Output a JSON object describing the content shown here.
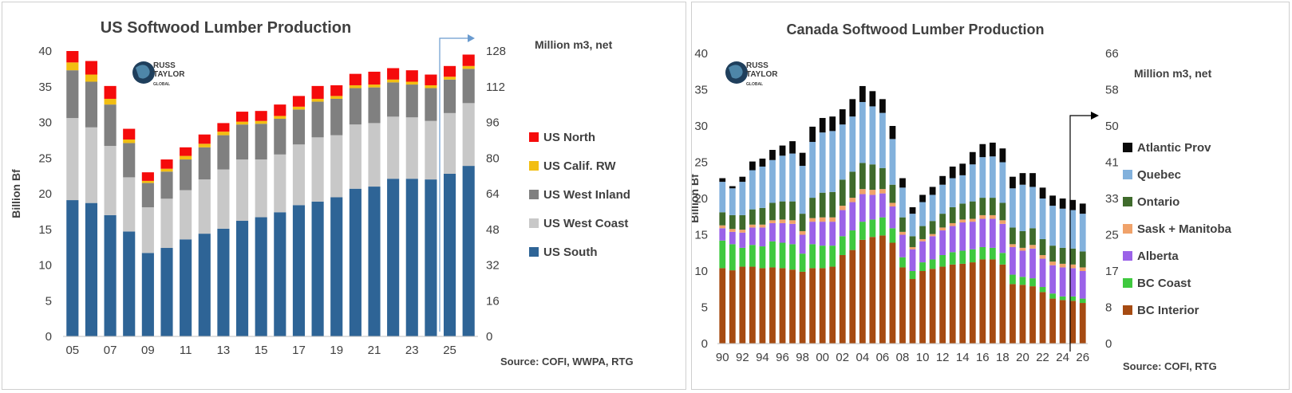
{
  "chart_data": [
    {
      "type": "bar",
      "stacked": true,
      "title": "US Softwood Lumber Production",
      "ylabel": "Billion Bf",
      "y2label": "Million m3, net",
      "source": "Source: COFI, WWPA, RTG",
      "ylim": [
        0,
        40
      ],
      "yticks": [
        "0",
        "5",
        "10",
        "15",
        "20",
        "25",
        "30",
        "35",
        "40"
      ],
      "y2ticks": [
        "0",
        "16",
        "32",
        "48",
        "64",
        "80",
        "96",
        "112",
        "128"
      ],
      "xticks": [
        "05",
        "07",
        "09",
        "11",
        "13",
        "15",
        "17",
        "19",
        "21",
        "23",
        "25"
      ],
      "categories": [
        "2005",
        "2006",
        "2007",
        "2008",
        "2009",
        "2010",
        "2011",
        "2012",
        "2013",
        "2014",
        "2015",
        "2016",
        "2017",
        "2018",
        "2019",
        "2020",
        "2021",
        "2022",
        "2023",
        "2024",
        "2025",
        "2026"
      ],
      "grid": false,
      "legend_position": "right",
      "legend_order": [
        4,
        3,
        2,
        1,
        0
      ],
      "series": [
        {
          "name": "US South",
          "color": "#2e6496",
          "values": [
            19.1,
            18.7,
            17.0,
            14.7,
            11.7,
            12.4,
            13.6,
            14.4,
            15.1,
            16.2,
            16.7,
            17.4,
            18.4,
            18.9,
            19.5,
            20.7,
            21.0,
            22.1,
            22.1,
            22.0,
            22.8,
            23.9
          ]
        },
        {
          "name": "US West Coast",
          "color": "#c8c8c8",
          "values": [
            11.5,
            10.6,
            9.7,
            7.6,
            6.4,
            6.9,
            6.9,
            7.6,
            8.3,
            8.6,
            8.1,
            8.1,
            8.5,
            9.0,
            8.7,
            9.0,
            8.9,
            8.7,
            8.6,
            8.2,
            8.5,
            8.8
          ]
        },
        {
          "name": "US West Inland",
          "color": "#808080",
          "values": [
            6.7,
            6.4,
            5.8,
            4.8,
            3.4,
            3.8,
            4.3,
            4.5,
            4.8,
            4.9,
            5.0,
            5.0,
            4.9,
            5.0,
            5.1,
            5.1,
            5.0,
            4.8,
            4.6,
            4.6,
            4.7,
            4.8
          ]
        },
        {
          "name": "US Calif. RW",
          "color": "#f2be12",
          "values": [
            1.1,
            1.0,
            0.8,
            0.5,
            0.3,
            0.4,
            0.5,
            0.5,
            0.5,
            0.4,
            0.4,
            0.4,
            0.4,
            0.4,
            0.4,
            0.4,
            0.4,
            0.4,
            0.4,
            0.4,
            0.4,
            0.4
          ]
        },
        {
          "name": "US North",
          "color": "#f50b0b",
          "values": [
            1.6,
            1.9,
            1.8,
            1.5,
            1.2,
            1.3,
            1.2,
            1.3,
            1.2,
            1.4,
            1.4,
            1.6,
            1.5,
            1.8,
            1.5,
            1.6,
            1.8,
            1.6,
            1.6,
            1.5,
            1.5,
            1.6
          ]
        }
      ]
    },
    {
      "type": "bar",
      "stacked": true,
      "title": "Canada Softwood Lumber Production",
      "ylabel": "Billion Bf",
      "y2label": "Million m3, net",
      "source": "Source: COFI, RTG",
      "ylim": [
        0,
        40
      ],
      "yticks": [
        "0",
        "5",
        "10",
        "15",
        "20",
        "25",
        "30",
        "35",
        "40"
      ],
      "y2ticks": [
        "0",
        "8",
        "17",
        "25",
        "33",
        "41",
        "50",
        "58",
        "66"
      ],
      "xticks": [
        "90",
        "92",
        "94",
        "96",
        "98",
        "00",
        "02",
        "04",
        "06",
        "08",
        "10",
        "12",
        "14",
        "16",
        "18",
        "20",
        "22",
        "24",
        "26"
      ],
      "categories": [
        "1990",
        "1991",
        "1992",
        "1993",
        "1994",
        "1995",
        "1996",
        "1997",
        "1998",
        "1999",
        "2000",
        "2001",
        "2002",
        "2003",
        "2004",
        "2005",
        "2006",
        "2007",
        "2008",
        "2009",
        "2010",
        "2011",
        "2012",
        "2013",
        "2014",
        "2015",
        "2016",
        "2017",
        "2018",
        "2019",
        "2020",
        "2021",
        "2022",
        "2023",
        "2024",
        "2025",
        "2026"
      ],
      "grid": false,
      "legend_position": "right",
      "legend_order": [
        6,
        5,
        4,
        3,
        2,
        1,
        0
      ],
      "series": [
        {
          "name": "BC Interior",
          "color": "#a64b12",
          "values": [
            10.4,
            10.1,
            10.6,
            10.6,
            10.4,
            10.5,
            10.4,
            10.2,
            9.9,
            10.4,
            10.4,
            10.6,
            12.2,
            12.9,
            14.3,
            14.7,
            14.9,
            13.9,
            10.5,
            8.9,
            10.0,
            10.3,
            10.6,
            10.9,
            11.0,
            11.2,
            11.6,
            11.6,
            10.9,
            8.2,
            8.1,
            7.9,
            7.1,
            6.2,
            6.0,
            5.9,
            5.6
          ]
        },
        {
          "name": "BC Coast",
          "color": "#3fc93f",
          "values": [
            3.8,
            3.6,
            2.6,
            3.0,
            3.0,
            3.6,
            3.5,
            3.5,
            2.5,
            3.3,
            3.1,
            2.9,
            2.6,
            2.7,
            2.5,
            2.4,
            2.5,
            2.0,
            1.4,
            1.1,
            1.2,
            1.3,
            1.6,
            1.7,
            1.8,
            1.8,
            1.7,
            1.6,
            1.6,
            1.3,
            1.1,
            1.1,
            0.7,
            0.7,
            0.5,
            0.6,
            0.6
          ]
        },
        {
          "name": "Alberta",
          "color": "#9b62e8",
          "values": [
            1.7,
            1.7,
            2.1,
            2.4,
            2.6,
            2.5,
            2.7,
            2.8,
            2.6,
            3.1,
            3.3,
            3.3,
            3.6,
            3.9,
            3.8,
            3.4,
            3.3,
            3.0,
            3.1,
            3.0,
            2.9,
            3.2,
            3.4,
            3.6,
            3.9,
            3.8,
            3.9,
            4.0,
            4.0,
            3.8,
            3.6,
            4.1,
            3.9,
            3.9,
            4.0,
            3.9,
            3.8
          ]
        },
        {
          "name": "Sask + Manitoba",
          "color": "#f0a26a",
          "values": [
            0.4,
            0.4,
            0.4,
            0.4,
            0.4,
            0.4,
            0.5,
            0.5,
            0.5,
            0.5,
            0.6,
            0.6,
            0.6,
            0.6,
            0.7,
            0.7,
            0.6,
            0.5,
            0.4,
            0.3,
            0.3,
            0.3,
            0.4,
            0.4,
            0.4,
            0.4,
            0.5,
            0.5,
            0.5,
            0.4,
            0.4,
            0.5,
            0.5,
            0.5,
            0.5,
            0.5,
            0.5
          ]
        },
        {
          "name": "Ontario",
          "color": "#3f6b2c",
          "values": [
            1.8,
            1.9,
            2.0,
            2.1,
            2.3,
            2.4,
            2.5,
            2.6,
            2.4,
            2.8,
            3.4,
            3.5,
            3.6,
            3.6,
            3.6,
            3.5,
            2.9,
            2.5,
            2.0,
            1.5,
            1.8,
            1.8,
            1.9,
            2.2,
            2.2,
            2.4,
            2.4,
            2.4,
            2.4,
            2.3,
            2.3,
            2.3,
            2.2,
            2.2,
            2.2,
            2.2,
            2.2
          ]
        },
        {
          "name": "Quebec",
          "color": "#82b1dc",
          "values": [
            4.2,
            3.7,
            4.6,
            5.4,
            5.7,
            5.9,
            6.3,
            6.6,
            6.6,
            7.7,
            8.3,
            8.4,
            7.6,
            7.6,
            8.4,
            8.0,
            7.6,
            6.3,
            4.1,
            3.1,
            3.3,
            3.6,
            4.0,
            4.0,
            3.9,
            5.1,
            5.6,
            5.7,
            5.6,
            5.4,
            6.4,
            5.7,
            5.6,
            5.5,
            5.4,
            5.3,
            5.2
          ]
        },
        {
          "name": "Atlantic Prov",
          "color": "#0a0a0a",
          "values": [
            0.5,
            0.3,
            0.7,
            1.2,
            1.1,
            1.4,
            1.4,
            1.7,
            1.8,
            2.1,
            2.0,
            2.0,
            2.1,
            2.4,
            2.2,
            2.1,
            1.9,
            1.8,
            1.3,
            0.9,
            1.0,
            1.1,
            1.2,
            1.6,
            1.6,
            1.7,
            1.8,
            1.9,
            1.9,
            1.6,
            1.6,
            1.9,
            1.5,
            1.4,
            1.4,
            1.4,
            1.4
          ]
        }
      ]
    }
  ],
  "logo_text": "RUSS TAYLOR GLOBAL"
}
